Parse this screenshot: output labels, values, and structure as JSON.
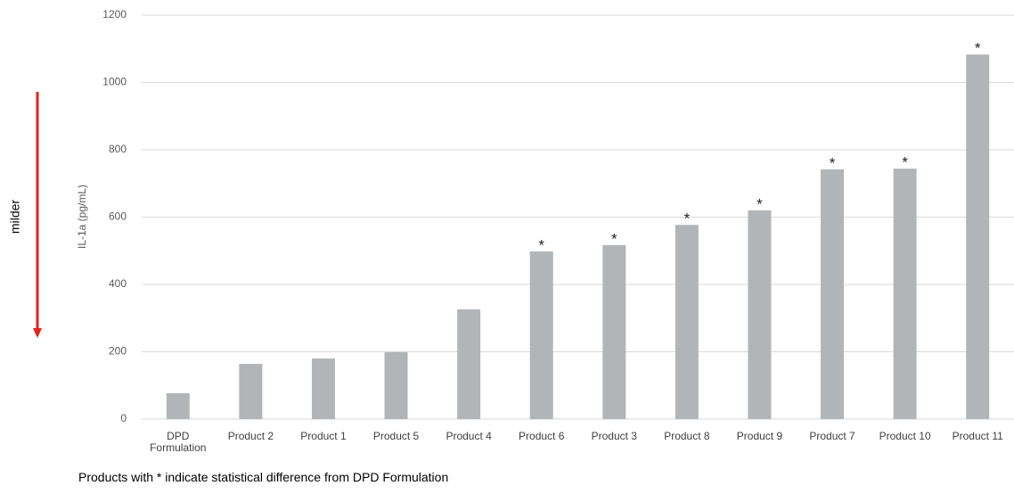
{
  "chart_data": {
    "type": "bar",
    "y_label": "IL-1a (pg/mL)",
    "direction_label": "milder",
    "footnote": "Products with * indicate statistical difference from DPD Formulation",
    "categories": [
      "DPD Formulation",
      "Product 2",
      "Product 1",
      "Product 5",
      "Product 4",
      "Product 6",
      "Product 3",
      "Product 8",
      "Product 9",
      "Product 7",
      "Product 10",
      "Product 11"
    ],
    "values": [
      77,
      164,
      180,
      199,
      326,
      498,
      517,
      577,
      620,
      742,
      744,
      1083
    ],
    "significance_markers": [
      null,
      null,
      null,
      null,
      null,
      "*",
      "*",
      "*",
      "*",
      "*",
      "*",
      "*"
    ],
    "color": "#b1b5b8",
    "ylim": [
      0,
      1200
    ],
    "yticks": [
      0,
      200,
      400,
      600,
      800,
      1000,
      1200
    ],
    "grid": true
  }
}
